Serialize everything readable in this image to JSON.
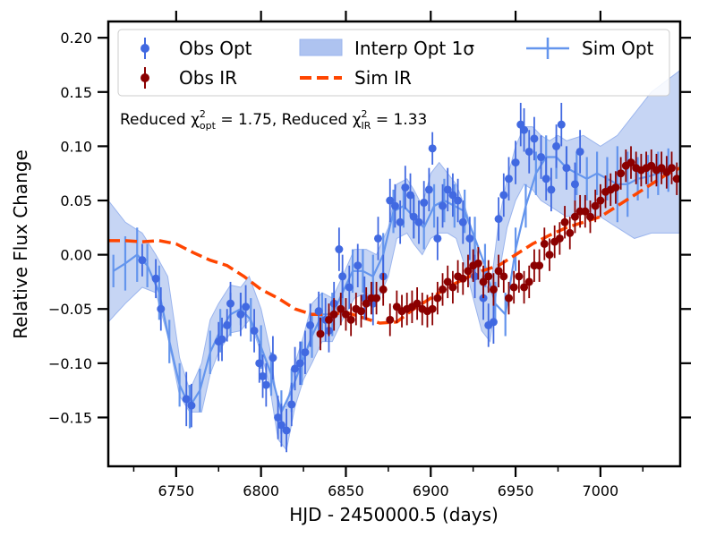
{
  "chart_data": {
    "type": "line",
    "title": "",
    "xlabel": "HJD - 2450000.5 (days)",
    "ylabel": "Relative Flux Change",
    "xlim": [
      6710,
      7047
    ],
    "ylim": [
      -0.195,
      0.215
    ],
    "xticks": [
      6750,
      6800,
      6850,
      6900,
      6950,
      7000
    ],
    "xtick_labels": [
      "6750",
      "6800",
      "6850",
      "6900",
      "6950",
      "7000"
    ],
    "yticks": [
      -0.15,
      -0.1,
      -0.05,
      0.0,
      0.05,
      0.1,
      0.15,
      0.2
    ],
    "ytick_labels": [
      "−0.15",
      "−0.10",
      "−0.05",
      "0.00",
      "0.05",
      "0.10",
      "0.15",
      "0.20"
    ],
    "annotation": {
      "prefix": "Reduced χ",
      "sub1": "opt",
      "mid": " = 1.75, Reduced χ",
      "sub2": "IR",
      "suffix": " = 1.33",
      "sup": "2"
    },
    "legend": {
      "placement": "top",
      "entries": [
        {
          "label": "Obs Opt"
        },
        {
          "label": "Obs IR"
        },
        {
          "label": "Interp Opt 1σ"
        },
        {
          "label": "Sim IR"
        },
        {
          "label": "Sim Opt"
        }
      ]
    },
    "colors": {
      "obs_opt": "#4169e1",
      "obs_ir": "#8b0000",
      "band": "#aec3f0",
      "band_edge": "#9bb5ee",
      "sim_opt": "#6495ed",
      "sim_ir": "#ff4500"
    },
    "series": [
      {
        "name": "Obs Opt",
        "kind": "points",
        "x": [
          6730,
          6738,
          6741,
          6756,
          6759,
          6775,
          6777,
          6780,
          6782,
          6788,
          6791,
          6796,
          6799,
          6801,
          6803,
          6807,
          6810,
          6812,
          6815,
          6818,
          6820,
          6823,
          6826,
          6829,
          6834,
          6838,
          6840,
          6843,
          6846,
          6848,
          6852,
          6857,
          6861,
          6866,
          6869,
          6872,
          6876,
          6879,
          6882,
          6885,
          6888,
          6890,
          6893,
          6896,
          6899,
          6901,
          6904,
          6907,
          6910,
          6913,
          6916,
          6919,
          6923,
          6926,
          6931,
          6934,
          6937,
          6940,
          6943,
          6946,
          6950,
          6953,
          6955,
          6958,
          6961,
          6965,
          6968,
          6971,
          6974,
          6977,
          6980,
          6985,
          6988
        ],
        "y": [
          -0.005,
          -0.022,
          -0.05,
          -0.133,
          -0.139,
          -0.08,
          -0.078,
          -0.065,
          -0.045,
          -0.055,
          -0.048,
          -0.07,
          -0.1,
          -0.112,
          -0.12,
          -0.095,
          -0.15,
          -0.157,
          -0.162,
          -0.138,
          -0.105,
          -0.1,
          -0.09,
          -0.065,
          -0.052,
          -0.06,
          -0.07,
          -0.045,
          0.005,
          -0.02,
          -0.03,
          -0.01,
          -0.04,
          -0.045,
          0.015,
          -0.02,
          0.05,
          0.045,
          0.03,
          0.062,
          0.055,
          0.035,
          0.03,
          0.048,
          0.06,
          0.098,
          0.015,
          0.045,
          0.06,
          0.055,
          0.05,
          0.03,
          0.015,
          -0.02,
          -0.04,
          -0.065,
          -0.062,
          0.033,
          0.055,
          0.07,
          0.085,
          0.12,
          0.115,
          0.095,
          0.107,
          0.09,
          0.07,
          0.06,
          0.1,
          0.12,
          0.08,
          0.065,
          0.095
        ],
        "yerr": [
          0.015,
          0.018,
          0.02,
          0.025,
          0.02,
          0.018,
          0.02,
          0.015,
          0.02,
          0.02,
          0.02,
          0.02,
          0.018,
          0.02,
          0.02,
          0.02,
          0.02,
          0.02,
          0.02,
          0.02,
          0.02,
          0.02,
          0.02,
          0.02,
          0.018,
          0.02,
          0.02,
          0.02,
          0.02,
          0.02,
          0.02,
          0.02,
          0.02,
          0.02,
          0.02,
          0.02,
          0.02,
          0.02,
          0.02,
          0.02,
          0.02,
          0.02,
          0.02,
          0.02,
          0.02,
          0.015,
          0.02,
          0.02,
          0.02,
          0.02,
          0.02,
          0.02,
          0.02,
          0.02,
          0.02,
          0.02,
          0.02,
          0.02,
          0.02,
          0.02,
          0.02,
          0.02,
          0.02,
          0.02,
          0.02,
          0.02,
          0.02,
          0.02,
          0.02,
          0.02,
          0.02,
          0.02,
          0.02
        ]
      },
      {
        "name": "Obs IR",
        "kind": "points",
        "x": [
          6835,
          6840,
          6843,
          6847,
          6850,
          6853,
          6856,
          6859,
          6862,
          6865,
          6868,
          6872,
          6876,
          6880,
          6883,
          6886,
          6889,
          6892,
          6895,
          6898,
          6901,
          6904,
          6907,
          6910,
          6913,
          6916,
          6919,
          6922,
          6925,
          6928,
          6931,
          6934,
          6937,
          6940,
          6943,
          6946,
          6949,
          6952,
          6955,
          6958,
          6961,
          6964,
          6967,
          6970,
          6973,
          6976,
          6979,
          6982,
          6985,
          6988,
          6991,
          6994,
          6997,
          7000,
          7003,
          7006,
          7009,
          7012,
          7015,
          7018,
          7021,
          7024,
          7027,
          7030,
          7033,
          7036,
          7039,
          7042,
          7045
        ],
        "y": [
          -0.073,
          -0.06,
          -0.055,
          -0.05,
          -0.055,
          -0.06,
          -0.05,
          -0.052,
          -0.045,
          -0.04,
          -0.04,
          -0.032,
          -0.06,
          -0.048,
          -0.052,
          -0.05,
          -0.048,
          -0.045,
          -0.05,
          -0.052,
          -0.05,
          -0.04,
          -0.032,
          -0.025,
          -0.03,
          -0.02,
          -0.022,
          -0.015,
          -0.01,
          -0.008,
          -0.025,
          -0.02,
          -0.032,
          -0.015,
          -0.02,
          -0.04,
          -0.03,
          -0.02,
          -0.03,
          -0.025,
          -0.01,
          -0.01,
          0.01,
          0.0,
          0.012,
          0.015,
          0.03,
          0.02,
          0.035,
          0.04,
          0.04,
          0.035,
          0.045,
          0.05,
          0.058,
          0.06,
          0.062,
          0.075,
          0.082,
          0.085,
          0.08,
          0.078,
          0.08,
          0.082,
          0.078,
          0.08,
          0.076,
          0.08,
          0.07
        ],
        "yerr": [
          0.015,
          0.015,
          0.015,
          0.015,
          0.015,
          0.015,
          0.015,
          0.015,
          0.015,
          0.015,
          0.015,
          0.015,
          0.015,
          0.015,
          0.015,
          0.015,
          0.015,
          0.015,
          0.015,
          0.015,
          0.015,
          0.015,
          0.015,
          0.015,
          0.015,
          0.015,
          0.015,
          0.015,
          0.015,
          0.015,
          0.015,
          0.015,
          0.015,
          0.015,
          0.015,
          0.015,
          0.015,
          0.015,
          0.015,
          0.015,
          0.015,
          0.015,
          0.015,
          0.015,
          0.015,
          0.015,
          0.015,
          0.015,
          0.015,
          0.015,
          0.015,
          0.015,
          0.015,
          0.015,
          0.015,
          0.015,
          0.015,
          0.015,
          0.015,
          0.015,
          0.015,
          0.015,
          0.015,
          0.015,
          0.015,
          0.015,
          0.015,
          0.015,
          0.015
        ]
      },
      {
        "name": "Interp Opt 1σ",
        "kind": "band",
        "x": [
          6710,
          6720,
          6730,
          6738,
          6745,
          6752,
          6758,
          6765,
          6770,
          6775,
          6782,
          6788,
          6793,
          6800,
          6805,
          6810,
          6815,
          6820,
          6825,
          6830,
          6836,
          6842,
          6848,
          6855,
          6862,
          6868,
          6875,
          6880,
          6886,
          6890,
          6895,
          6900,
          6905,
          6910,
          6915,
          6920,
          6925,
          6930,
          6935,
          6940,
          6945,
          6950,
          6955,
          6960,
          6965,
          6970,
          6975,
          6980,
          6990,
          7000,
          7010,
          7020,
          7030,
          7047
        ],
        "lower": [
          -0.062,
          -0.045,
          -0.03,
          -0.035,
          -0.075,
          -0.13,
          -0.145,
          -0.145,
          -0.11,
          -0.09,
          -0.072,
          -0.07,
          -0.06,
          -0.09,
          -0.12,
          -0.17,
          -0.18,
          -0.14,
          -0.115,
          -0.1,
          -0.08,
          -0.08,
          -0.06,
          -0.04,
          -0.035,
          -0.045,
          -0.02,
          0.015,
          0.02,
          0.01,
          0.0,
          0.015,
          0.02,
          0.02,
          0.015,
          -0.01,
          -0.04,
          -0.07,
          -0.08,
          -0.02,
          0.025,
          0.05,
          0.065,
          0.06,
          0.05,
          0.045,
          0.04,
          0.035,
          0.04,
          0.035,
          0.025,
          0.015,
          0.02,
          0.02
        ],
        "upper": [
          0.05,
          0.03,
          0.02,
          0.0,
          -0.02,
          -0.095,
          -0.125,
          -0.1,
          -0.06,
          -0.045,
          -0.028,
          -0.03,
          -0.02,
          -0.05,
          -0.085,
          -0.14,
          -0.14,
          -0.1,
          -0.075,
          -0.045,
          -0.035,
          -0.04,
          -0.02,
          0.005,
          0.005,
          0.0,
          0.025,
          0.065,
          0.07,
          0.06,
          0.045,
          0.075,
          0.085,
          0.075,
          0.065,
          0.045,
          0.02,
          -0.02,
          -0.035,
          0.03,
          0.07,
          0.1,
          0.118,
          0.118,
          0.11,
          0.105,
          0.11,
          0.105,
          0.11,
          0.1,
          0.11,
          0.13,
          0.15,
          0.17
        ]
      },
      {
        "name": "Sim Opt",
        "kind": "line",
        "x": [
          6713,
          6720,
          6727,
          6733,
          6740,
          6746,
          6752,
          6758,
          6764,
          6770,
          6776,
          6782,
          6788,
          6794,
          6800,
          6806,
          6812,
          6818,
          6824,
          6830,
          6836,
          6842,
          6848,
          6854,
          6860,
          6866,
          6872,
          6878,
          6884,
          6890,
          6896,
          6902,
          6908,
          6914,
          6920,
          6926,
          6932,
          6938,
          6944,
          6950,
          6956,
          6962,
          6968,
          6974,
          6980,
          6986,
          6992,
          6998,
          7004,
          7010,
          7016,
          7022,
          7028,
          7034,
          7040
        ],
        "y": [
          -0.015,
          -0.008,
          0.0,
          -0.01,
          -0.035,
          -0.08,
          -0.12,
          -0.14,
          -0.125,
          -0.09,
          -0.07,
          -0.055,
          -0.05,
          -0.06,
          -0.085,
          -0.11,
          -0.145,
          -0.125,
          -0.1,
          -0.075,
          -0.055,
          -0.055,
          -0.035,
          -0.015,
          -0.015,
          -0.02,
          0.0,
          0.04,
          0.045,
          0.035,
          0.025,
          0.045,
          0.05,
          0.045,
          0.04,
          0.015,
          -0.01,
          -0.045,
          -0.055,
          0.005,
          0.045,
          0.075,
          0.09,
          0.09,
          0.08,
          0.075,
          0.07,
          0.075,
          0.07,
          0.065,
          0.065,
          0.07,
          0.072,
          0.075,
          0.078
        ],
        "yerr": [
          0.015,
          0.025,
          0.025,
          0.02,
          0.025,
          0.02,
          0.02,
          0.02,
          0.02,
          0.02,
          0.02,
          0.02,
          0.015,
          0.02,
          0.02,
          0.02,
          0.02,
          0.02,
          0.02,
          0.02,
          0.02,
          0.02,
          0.02,
          0.02,
          0.02,
          0.02,
          0.02,
          0.02,
          0.02,
          0.02,
          0.02,
          0.02,
          0.02,
          0.02,
          0.02,
          0.02,
          0.02,
          0.02,
          0.02,
          0.02,
          0.02,
          0.02,
          0.02,
          0.02,
          0.02,
          0.02,
          0.02,
          0.02,
          0.02,
          0.035,
          0.03,
          0.02,
          0.02,
          0.02,
          0.02
        ]
      },
      {
        "name": "Sim IR",
        "kind": "dashed-line",
        "x": [
          6710,
          6720,
          6730,
          6740,
          6750,
          6760,
          6770,
          6780,
          6790,
          6800,
          6810,
          6820,
          6830,
          6840,
          6850,
          6860,
          6870,
          6880,
          6890,
          6900,
          6910,
          6920,
          6930,
          6940,
          6950,
          6960,
          6970,
          6980,
          6990,
          7000,
          7010,
          7020,
          7030,
          7040,
          7047
        ],
        "y": [
          0.013,
          0.013,
          0.012,
          0.013,
          0.01,
          0.002,
          -0.005,
          -0.01,
          -0.02,
          -0.032,
          -0.04,
          -0.05,
          -0.055,
          -0.055,
          -0.053,
          -0.058,
          -0.063,
          -0.062,
          -0.05,
          -0.04,
          -0.03,
          -0.022,
          -0.015,
          -0.01,
          0.0,
          0.01,
          0.018,
          0.025,
          0.03,
          0.035,
          0.045,
          0.055,
          0.065,
          0.075,
          0.08
        ]
      }
    ]
  }
}
